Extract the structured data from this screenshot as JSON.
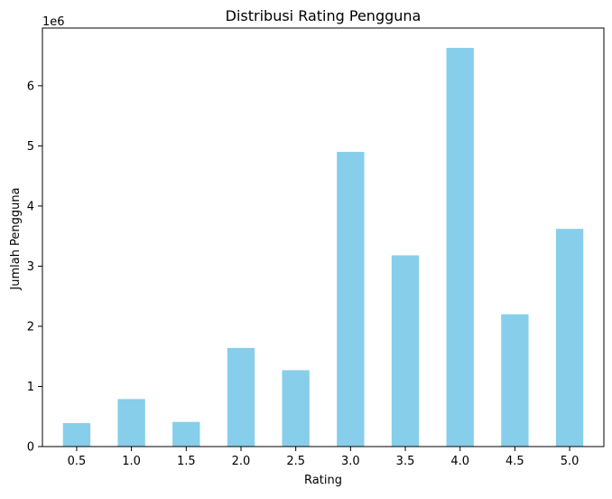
{
  "chart_data": {
    "type": "bar",
    "title": "Distribusi Rating Pengguna",
    "xlabel": "Rating",
    "ylabel": "Jumlah Pengguna",
    "y_scale_label": "1e6",
    "categories": [
      "0.5",
      "1.0",
      "1.5",
      "2.0",
      "2.5",
      "3.0",
      "3.5",
      "4.0",
      "4.5",
      "5.0"
    ],
    "values": [
      0.39,
      0.79,
      0.41,
      1.64,
      1.27,
      4.9,
      3.18,
      6.63,
      2.2,
      3.62
    ],
    "value_unit_multiplier": 1000000,
    "ylim": [
      0,
      6.96
    ],
    "yticks": [
      0,
      1,
      2,
      3,
      4,
      5,
      6
    ],
    "grid": false,
    "bar_color": "#87CEEB"
  }
}
